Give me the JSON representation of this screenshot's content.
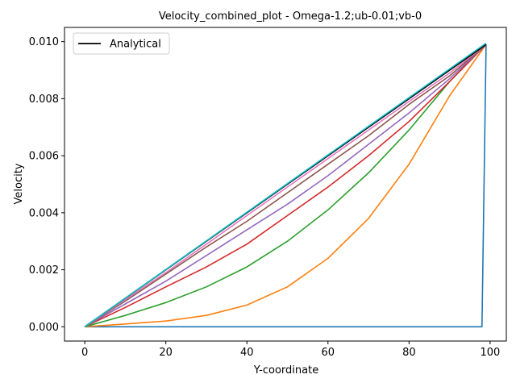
{
  "chart_data": {
    "type": "line",
    "title": "Velocity_combined_plot - Omega-1.2;ub-0.01;vb-0",
    "xlabel": "Y-coordinate",
    "ylabel": "Velocity",
    "xlim": [
      -5,
      104
    ],
    "ylim": [
      -0.0005,
      0.0105
    ],
    "x_ticks": [
      0,
      20,
      40,
      60,
      80,
      100
    ],
    "x_tick_labels": [
      "0",
      "20",
      "40",
      "60",
      "80",
      "100"
    ],
    "y_ticks": [
      0,
      0.002,
      0.004,
      0.006,
      0.008,
      0.01
    ],
    "y_tick_labels": [
      "0.000",
      "0.002",
      "0.004",
      "0.006",
      "0.008",
      "0.010"
    ],
    "legend_position": "top-left",
    "grid": false,
    "series": [
      {
        "name": "",
        "color": "#1f77b4",
        "x": [
          0,
          98,
          99
        ],
        "y": [
          0,
          0,
          0.0099
        ]
      },
      {
        "name": "",
        "color": "#ff7f0e",
        "x": [
          0,
          10,
          20,
          30,
          40,
          50,
          60,
          70,
          80,
          90,
          99
        ],
        "y": [
          0,
          0.0001,
          0.0002,
          0.0004,
          0.00076,
          0.0014,
          0.0024,
          0.0038,
          0.0057,
          0.0081,
          0.0099
        ]
      },
      {
        "name": "",
        "color": "#2ca02c",
        "x": [
          0,
          10,
          20,
          30,
          40,
          50,
          60,
          70,
          80,
          90,
          99
        ],
        "y": [
          0,
          0.0004,
          0.00085,
          0.0014,
          0.0021,
          0.003,
          0.0041,
          0.0054,
          0.0069,
          0.0086,
          0.0099
        ]
      },
      {
        "name": "",
        "color": "#d62728",
        "x": [
          0,
          10,
          20,
          30,
          40,
          50,
          60,
          70,
          80,
          90,
          99
        ],
        "y": [
          0,
          0.00068,
          0.0014,
          0.0021,
          0.0029,
          0.0039,
          0.0049,
          0.006,
          0.0072,
          0.0086,
          0.0099
        ]
      },
      {
        "name": "",
        "color": "#9467bd",
        "x": [
          0,
          10,
          20,
          30,
          40,
          50,
          60,
          70,
          80,
          90,
          99
        ],
        "y": [
          0,
          0.0008,
          0.0016,
          0.0025,
          0.0034,
          0.0043,
          0.0053,
          0.0064,
          0.0075,
          0.0087,
          0.0099
        ]
      },
      {
        "name": "",
        "color": "#8c564b",
        "x": [
          0,
          10,
          20,
          30,
          40,
          50,
          60,
          70,
          80,
          90,
          99
        ],
        "y": [
          0,
          0.0009,
          0.00185,
          0.0028,
          0.0037,
          0.0047,
          0.0057,
          0.0067,
          0.0078,
          0.0088,
          0.0099
        ]
      },
      {
        "name": "",
        "color": "#e377c2",
        "x": [
          0,
          10,
          20,
          30,
          40,
          50,
          60,
          70,
          80,
          90,
          99
        ],
        "y": [
          0,
          0.00095,
          0.0019,
          0.0029,
          0.0039,
          0.0049,
          0.0059,
          0.0069,
          0.0079,
          0.0089,
          0.0099
        ]
      },
      {
        "name": "",
        "color": "#7f7f7f",
        "x": [
          0,
          99
        ],
        "y": [
          0,
          0.0099
        ]
      },
      {
        "name": "",
        "color": "#bcbd22",
        "x": [
          0,
          99
        ],
        "y": [
          0,
          0.0099
        ]
      },
      {
        "name": "Analytical",
        "color": "#000000",
        "x": [
          0,
          99
        ],
        "y": [
          0,
          0.0099
        ]
      },
      {
        "name": "",
        "color": "#17becf",
        "x": [
          0,
          99
        ],
        "y": [
          0,
          0.00995
        ]
      }
    ]
  }
}
